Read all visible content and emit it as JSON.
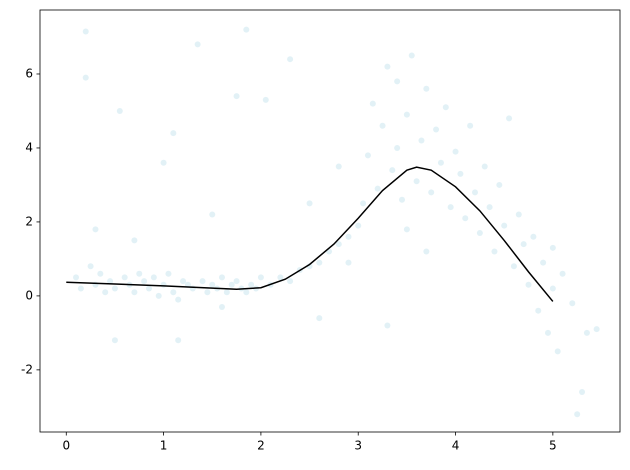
{
  "chart_data": {
    "type": "scatter",
    "xlim": [
      -0.27,
      5.69
    ],
    "ylim": [
      -3.68,
      7.73
    ],
    "xticks": [
      0,
      1,
      2,
      3,
      4,
      5
    ],
    "yticks": [
      -2,
      0,
      2,
      4,
      6
    ],
    "scatter": {
      "color": "#add8e6",
      "x": [
        0.1,
        0.15,
        0.2,
        0.2,
        0.25,
        0.3,
        0.35,
        0.4,
        0.45,
        0.5,
        0.55,
        0.6,
        0.65,
        0.7,
        0.75,
        0.8,
        0.85,
        0.9,
        0.95,
        1.0,
        1.05,
        1.1,
        1.15,
        1.2,
        1.25,
        1.3,
        1.35,
        1.4,
        1.45,
        1.5,
        1.55,
        1.6,
        1.65,
        1.7,
        1.75,
        1.8,
        1.85,
        1.9,
        1.95,
        2.0,
        0.3,
        0.5,
        0.7,
        1.1,
        1.15,
        1.6,
        1.75,
        1.85,
        2.05,
        2.3,
        1.5,
        1.0,
        2.1,
        2.2,
        2.3,
        2.4,
        2.5,
        2.6,
        2.7,
        2.8,
        2.9,
        3.0,
        2.5,
        2.8,
        2.6,
        2.9,
        3.05,
        3.1,
        3.15,
        3.2,
        3.25,
        3.3,
        3.35,
        3.4,
        3.45,
        3.5,
        3.55,
        3.6,
        3.65,
        3.7,
        3.75,
        3.8,
        3.85,
        3.9,
        3.95,
        4.0,
        3.3,
        3.5,
        3.7,
        3.4,
        4.05,
        4.1,
        4.15,
        4.2,
        4.25,
        4.3,
        4.35,
        4.4,
        4.45,
        4.5,
        4.55,
        4.6,
        4.65,
        4.7,
        4.75,
        4.8,
        4.85,
        4.9,
        4.95,
        5.0,
        5.05,
        5.1,
        5.2,
        5.3,
        5.35,
        5.45,
        5.25,
        5.0
      ],
      "y": [
        0.5,
        0.2,
        7.15,
        5.9,
        0.8,
        0.3,
        0.6,
        0.1,
        0.4,
        0.2,
        5.0,
        0.5,
        0.3,
        0.1,
        0.6,
        0.4,
        0.2,
        0.5,
        0.0,
        0.3,
        0.6,
        0.1,
        -0.1,
        0.4,
        0.3,
        0.2,
        6.8,
        0.4,
        0.1,
        0.3,
        0.2,
        0.5,
        0.1,
        0.3,
        0.4,
        0.2,
        0.1,
        0.3,
        0.2,
        0.5,
        1.8,
        -1.2,
        1.5,
        4.4,
        -1.2,
        -0.3,
        5.4,
        7.2,
        5.3,
        6.4,
        2.2,
        3.6,
        0.3,
        0.5,
        0.4,
        0.7,
        0.8,
        0.9,
        1.2,
        1.4,
        1.6,
        1.9,
        2.5,
        3.5,
        -0.6,
        0.9,
        2.5,
        3.8,
        5.2,
        2.9,
        4.6,
        6.2,
        3.4,
        5.8,
        2.6,
        4.9,
        6.5,
        3.1,
        4.2,
        5.6,
        2.8,
        4.5,
        3.6,
        5.1,
        2.4,
        3.9,
        -0.8,
        1.8,
        1.2,
        4.0,
        3.3,
        2.1,
        4.6,
        2.8,
        1.7,
        3.5,
        2.4,
        1.2,
        3.0,
        1.9,
        4.8,
        0.8,
        2.2,
        1.4,
        0.3,
        1.6,
        -0.4,
        0.9,
        -1.0,
        0.2,
        -1.5,
        0.6,
        -0.2,
        -2.6,
        -1.0,
        -0.9,
        -3.2,
        1.3
      ]
    },
    "line": {
      "color": "#000000",
      "x": [
        0,
        0.5,
        1,
        1.5,
        1.75,
        2,
        2.25,
        2.5,
        2.75,
        3,
        3.25,
        3.5,
        3.6,
        3.75,
        4,
        4.25,
        4.5,
        4.75,
        5
      ],
      "y": [
        0.37,
        0.32,
        0.27,
        0.21,
        0.18,
        0.22,
        0.45,
        0.85,
        1.4,
        2.1,
        2.85,
        3.4,
        3.48,
        3.4,
        2.95,
        2.3,
        1.5,
        0.65,
        -0.15
      ]
    }
  }
}
